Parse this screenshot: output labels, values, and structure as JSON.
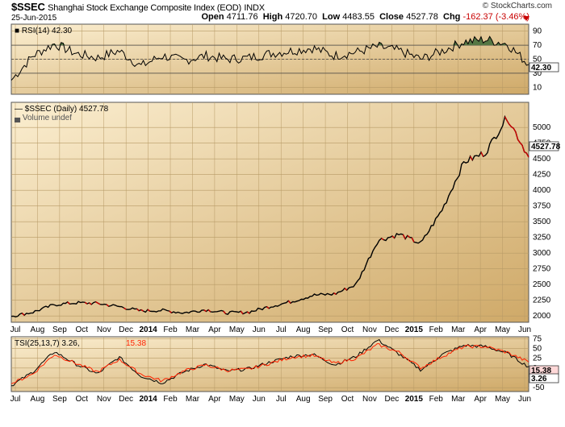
{
  "header": {
    "symbol": "$SSEC",
    "name": "Shanghai Stock Exchange Composite Index (EOD)",
    "exchange": "INDX",
    "date": "25-Jun-2015",
    "source": "© StockCharts.com",
    "open_label": "Open",
    "open": "4711.76",
    "high_label": "High",
    "high": "4720.70",
    "low_label": "Low",
    "low": "4483.55",
    "close_label": "Close",
    "close": "4527.78",
    "chg_label": "Chg",
    "chg": "-162.37 (-3.46%)"
  },
  "colors": {
    "panel_bg_start": "#fbeed0",
    "panel_bg_end": "#cfa968",
    "price_line": "#000000",
    "price_down": "#cc0000",
    "rsi_fill": "#557744",
    "tsi_signal": "#ff2200"
  },
  "chart_data": [
    {
      "type": "line",
      "title": "RSI(14) 42.30",
      "legend": "RSI(14) 42.30",
      "last_value_label": "42.30",
      "ylim": [
        0,
        100
      ],
      "yticks": [
        10,
        30,
        50,
        70,
        90
      ],
      "reference_lines": [
        30,
        50,
        70
      ],
      "x": [
        "2013-07",
        "2013-08",
        "2013-09",
        "2013-10",
        "2013-11",
        "2013-12",
        "2014-01",
        "2014-02",
        "2014-03",
        "2014-04",
        "2014-05",
        "2014-06",
        "2014-07",
        "2014-08",
        "2014-09",
        "2014-10",
        "2014-11",
        "2014-12",
        "2015-01",
        "2015-02",
        "2015-03",
        "2015-04",
        "2015-05",
        "2015-06",
        "2015-06-25"
      ],
      "series": [
        {
          "values": [
            20,
            55,
            72,
            58,
            52,
            62,
            40,
            55,
            48,
            55,
            50,
            52,
            58,
            62,
            66,
            55,
            60,
            68,
            62,
            50,
            62,
            75,
            78,
            72,
            42.3
          ]
        }
      ]
    },
    {
      "type": "line",
      "title": "$SSEC (Daily) 4527.78",
      "legend": "$SSEC (Daily) 4527.78",
      "volume_label": "Volume undef",
      "last_value_label": "4527.78",
      "ylim": [
        1900,
        5400
      ],
      "yticks": [
        2000,
        2250,
        2500,
        2750,
        3000,
        3250,
        3500,
        3750,
        4000,
        4250,
        4500,
        4750,
        5000
      ],
      "x": [
        "2013-07",
        "2013-08",
        "2013-09",
        "2013-10",
        "2013-11",
        "2013-12",
        "2014-01",
        "2014-02",
        "2014-03",
        "2014-04",
        "2014-05",
        "2014-06",
        "2014-07",
        "2014-08",
        "2014-09",
        "2014-10",
        "2014-11",
        "2014-12",
        "2015-01",
        "2015-02",
        "2015-03",
        "2015-04",
        "2015-05",
        "2015-06",
        "2015-06-25"
      ],
      "series": [
        {
          "name": "$SSEC",
          "values": [
            1995,
            2060,
            2180,
            2210,
            2200,
            2150,
            2080,
            2090,
            2050,
            2100,
            2050,
            2060,
            2150,
            2230,
            2330,
            2350,
            2500,
            3200,
            3300,
            3150,
            3700,
            4450,
            4600,
            5170,
            4527.78
          ]
        }
      ]
    },
    {
      "type": "line",
      "title": "TSI(25,13,7) 3.26, 15.38",
      "legend_tsi": "TSI(25,13,7) 3.26,",
      "legend_signal": "15.38",
      "last_value_labels": [
        "15.38",
        "3.26"
      ],
      "ylim": [
        -60,
        80
      ],
      "yticks": [
        -50,
        -25,
        0,
        25,
        50,
        75
      ],
      "x": [
        "2013-07",
        "2013-08",
        "2013-09",
        "2013-10",
        "2013-11",
        "2013-12",
        "2014-01",
        "2014-02",
        "2014-03",
        "2014-04",
        "2014-05",
        "2014-06",
        "2014-07",
        "2014-08",
        "2014-09",
        "2014-10",
        "2014-11",
        "2014-12",
        "2015-01",
        "2015-02",
        "2015-03",
        "2015-04",
        "2015-05",
        "2015-06",
        "2015-06-25"
      ],
      "series": [
        {
          "name": "TSI",
          "values": [
            -45,
            -10,
            42,
            10,
            -15,
            28,
            -20,
            -38,
            -10,
            10,
            -8,
            -2,
            15,
            30,
            35,
            8,
            30,
            72,
            35,
            -5,
            35,
            58,
            55,
            38,
            3.26
          ]
        },
        {
          "name": "Signal",
          "values": [
            -40,
            -15,
            35,
            12,
            -10,
            22,
            -15,
            -33,
            -8,
            8,
            -6,
            -3,
            12,
            28,
            32,
            12,
            25,
            60,
            40,
            0,
            30,
            55,
            55,
            40,
            15.38
          ]
        }
      ]
    }
  ],
  "x_axis": {
    "ticks": [
      "Jul",
      "Aug",
      "Sep",
      "Oct",
      "Nov",
      "Dec",
      "2014",
      "Feb",
      "Mar",
      "Apr",
      "May",
      "Jun",
      "Jul",
      "Aug",
      "Sep",
      "Oct",
      "Nov",
      "Dec",
      "2015",
      "Feb",
      "Mar",
      "Apr",
      "May",
      "Jun"
    ],
    "bold": [
      "2014",
      "2015"
    ]
  }
}
